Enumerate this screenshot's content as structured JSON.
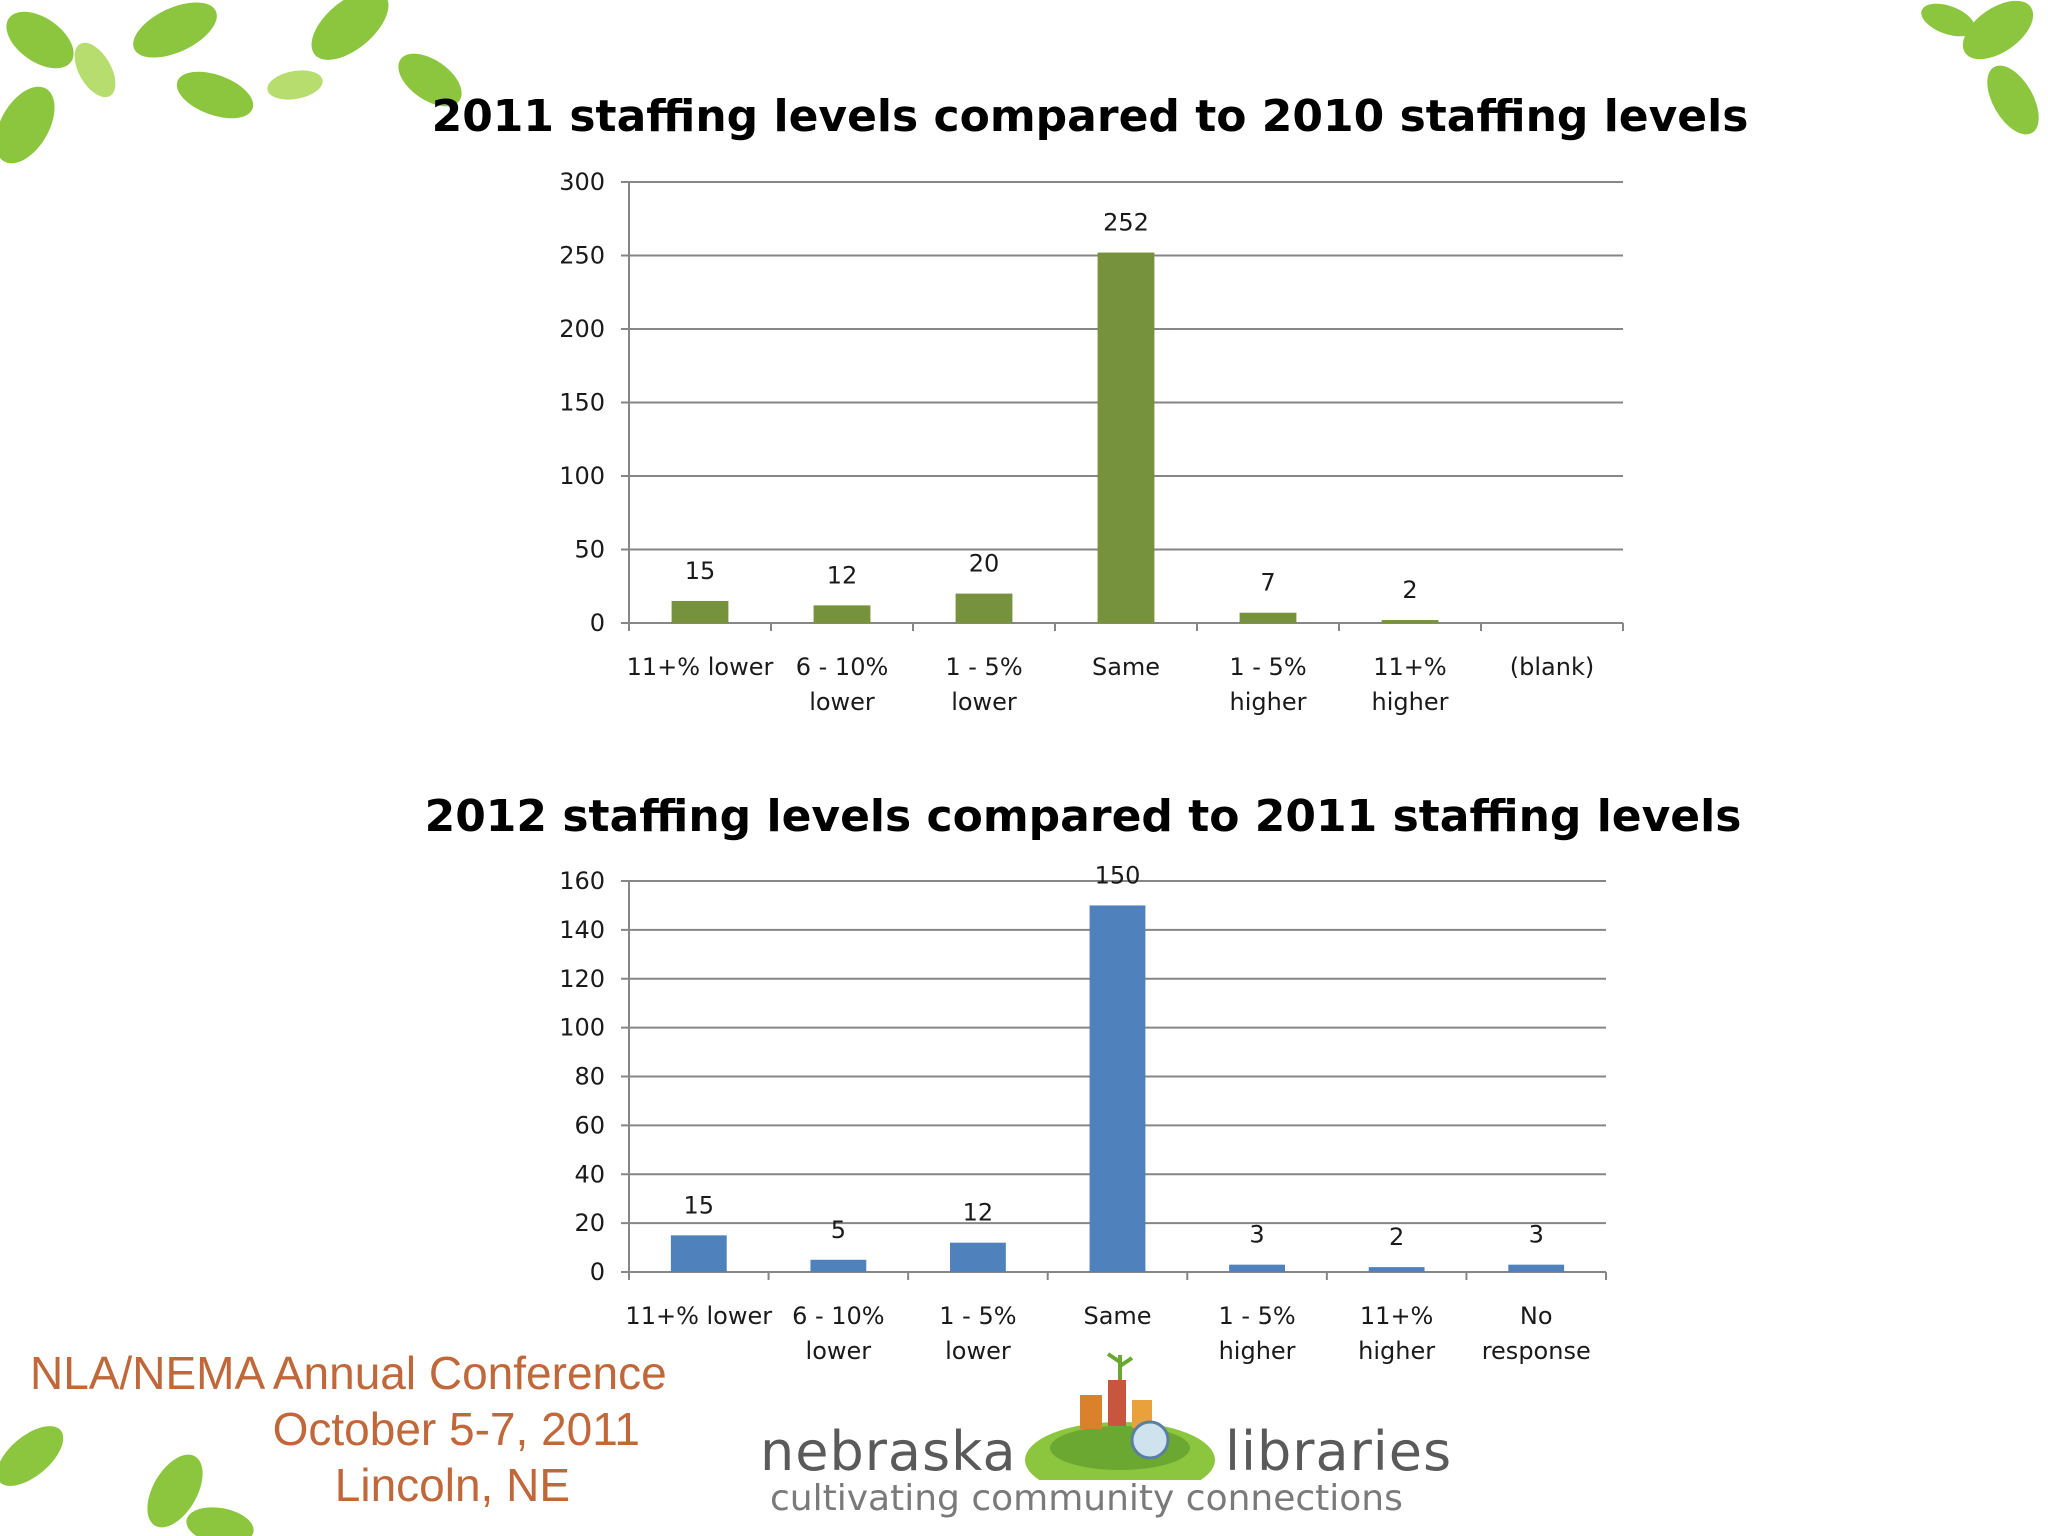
{
  "chart_data": [
    {
      "type": "bar",
      "title": "2011 staffing levels compared to 2010\nstaffing levels",
      "categories": [
        "11+% lower",
        "6 - 10%\nlower",
        "1 - 5%\nlower",
        "Same",
        "1 - 5%\nhigher",
        "11+%\nhigher",
        "(blank)"
      ],
      "values": [
        15,
        12,
        20,
        252,
        7,
        2,
        null
      ],
      "data_labels": [
        "15",
        "12",
        "20",
        "252",
        "7",
        "2",
        ""
      ],
      "ylim": [
        0,
        300
      ],
      "yticks": [
        0,
        50,
        100,
        150,
        200,
        250,
        300
      ],
      "xlabel": "",
      "ylabel": "",
      "color": "#76923c",
      "grid": true
    },
    {
      "type": "bar",
      "title": "2012 staffing levels compared to 2011\nstaffing levels",
      "categories": [
        "11+% lower",
        "6 - 10%\nlower",
        "1 - 5%\nlower",
        "Same",
        "1 - 5%\nhigher",
        "11+%\nhigher",
        "No\nresponse"
      ],
      "values": [
        15,
        5,
        12,
        150,
        3,
        2,
        3
      ],
      "data_labels": [
        "15",
        "5",
        "12",
        "150",
        "3",
        "2",
        "3"
      ],
      "ylim": [
        0,
        160
      ],
      "yticks": [
        0,
        20,
        40,
        60,
        80,
        100,
        120,
        140,
        160
      ],
      "xlabel": "",
      "ylabel": "",
      "color": "#4f81bd",
      "grid": true
    }
  ],
  "footer": {
    "conference_line1": "NLA/NEMA Annual Conference",
    "conference_line2": "October 5-7, 2011",
    "conference_line3": "Lincoln, NE",
    "logo_word_left": "nebraska",
    "logo_word_right": "libraries",
    "logo_tagline": "cultivating community connections"
  },
  "colors": {
    "accent_text": "#c0683a",
    "leaf_green": "#8cc63f"
  }
}
